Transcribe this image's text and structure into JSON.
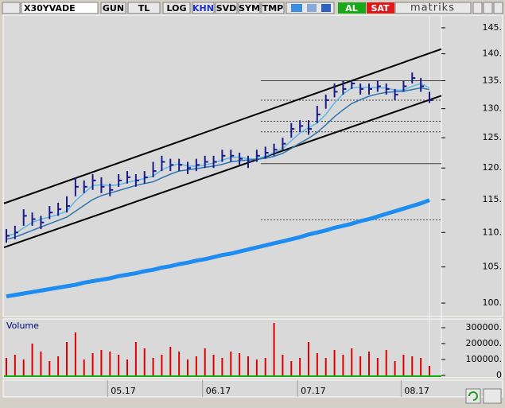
{
  "toolbar": {
    "symbol": "X30YVADE",
    "buttons": [
      "GUN",
      "TL",
      "LOG",
      "KHN",
      "SVD",
      "SYM",
      "TMP"
    ],
    "buy": "AL",
    "sell": "SAT",
    "brand": "matriks"
  },
  "chart_data": [
    {
      "type": "ohlc",
      "log": true,
      "color": "#1a1a8a",
      "ylim": [
        98.2,
        147.5
      ],
      "yticks": [
        {
          "value": 100,
          "label": "100."
        },
        {
          "value": 105,
          "label": "105."
        },
        {
          "value": 110,
          "label": "110."
        },
        {
          "value": 115,
          "label": "115."
        },
        {
          "value": 120,
          "label": "120."
        },
        {
          "value": 125,
          "label": "125."
        },
        {
          "value": 130,
          "label": "130."
        },
        {
          "value": 135,
          "label": "135."
        },
        {
          "value": 140,
          "label": "140."
        },
        {
          "value": 145,
          "label": "145."
        }
      ],
      "categories": [
        null,
        null,
        null,
        null,
        null,
        null,
        null,
        null,
        null,
        null,
        null,
        null,
        "05.17",
        null,
        null,
        null,
        null,
        null,
        null,
        null,
        null,
        null,
        null,
        "06.17",
        null,
        null,
        null,
        null,
        null,
        null,
        null,
        null,
        null,
        null,
        "07.17",
        null,
        null,
        null,
        null,
        null,
        null,
        null,
        null,
        null,
        null,
        null,
        "08.17",
        null,
        null,
        null
      ],
      "high": [
        110.5,
        111,
        113.5,
        113,
        112.5,
        114,
        114.5,
        115.5,
        118.5,
        118,
        119,
        118.5,
        117.5,
        119,
        119.5,
        119,
        119.5,
        121,
        122,
        121.5,
        121.5,
        121,
        121.5,
        122,
        122,
        123,
        123,
        122.5,
        122,
        123,
        123.5,
        124,
        125,
        127.5,
        128,
        128,
        130.5,
        132.5,
        134.5,
        135,
        135,
        134.5,
        134.5,
        135,
        134.5,
        133.5,
        135,
        136.5,
        135.5,
        133
      ],
      "low": [
        108.5,
        109,
        111,
        111,
        110.5,
        112,
        112.5,
        113,
        115.5,
        116,
        116.5,
        116,
        115.5,
        117,
        117.5,
        117,
        117.5,
        118.5,
        119.5,
        119.5,
        119.5,
        119,
        119.5,
        120,
        120,
        121,
        121,
        120.5,
        120,
        121,
        121.5,
        122,
        123,
        125,
        126,
        125.5,
        127.5,
        130,
        132,
        132.5,
        133.5,
        132.5,
        132.5,
        133,
        132.5,
        131.5,
        133,
        134.5,
        133,
        131
      ],
      "close": [
        109.5,
        110,
        112.5,
        112,
        111.5,
        113,
        113.5,
        114,
        117,
        117,
        118,
        117,
        116.5,
        118,
        118.5,
        118,
        118.5,
        119.5,
        121,
        120.5,
        120.5,
        120,
        120.5,
        121,
        121,
        122,
        122,
        121.5,
        121,
        122,
        122.5,
        123,
        124,
        126.5,
        127,
        126.5,
        129,
        131.5,
        133,
        133.5,
        134.5,
        133.5,
        133.5,
        134,
        133.5,
        132.5,
        134,
        135.5,
        134,
        131.5
      ],
      "series": [
        {
          "color": "#5ab8e8",
          "values": [
            109.5,
            109.8,
            110.7,
            111.5,
            112,
            112.3,
            112.7,
            113.2,
            114.8,
            116,
            117.2,
            117.3,
            117.2,
            117.3,
            117.7,
            118,
            118.3,
            118.7,
            119.7,
            120.3,
            120.7,
            120.3,
            120.3,
            120.5,
            120.8,
            121.3,
            121.7,
            121.8,
            121.5,
            121.5,
            121.9,
            122.5,
            123.2,
            124.5,
            125.8,
            126.7,
            127.5,
            129,
            131,
            132.6,
            133.7,
            133.8,
            133.8,
            133.7,
            133.7,
            133.3,
            133.3,
            134,
            134.5,
            133.7
          ]
        },
        {
          "color": "#2f74b0",
          "values": [
            109,
            109.3,
            109.8,
            110.3,
            110.8,
            111.3,
            111.8,
            112.3,
            113.2,
            114.1,
            115,
            115.6,
            116,
            116.4,
            116.8,
            117.2,
            117.5,
            117.8,
            118.4,
            119,
            119.5,
            119.7,
            119.9,
            120.1,
            120.3,
            120.6,
            121,
            121.2,
            121.3,
            121.4,
            121.6,
            121.9,
            122.4,
            123.2,
            124.1,
            124.9,
            125.9,
            127.2,
            128.6,
            129.8,
            130.9,
            131.6,
            132.2,
            132.6,
            132.9,
            133,
            133.1,
            133.4,
            133.7,
            133.4
          ]
        },
        {
          "color": "#1e8cf0",
          "values": [
            100.9,
            101.1,
            101.3,
            101.5,
            101.7,
            101.9,
            102.1,
            102.3,
            102.5,
            102.8,
            103,
            103.2,
            103.4,
            103.7,
            103.9,
            104.1,
            104.4,
            104.6,
            104.9,
            105.1,
            105.4,
            105.6,
            105.9,
            106.1,
            106.4,
            106.7,
            106.9,
            107.2,
            107.5,
            107.8,
            108.1,
            108.4,
            108.7,
            109,
            109.3,
            109.7,
            110,
            110.3,
            110.7,
            111,
            111.3,
            111.7,
            112,
            112.4,
            112.8,
            113.2,
            113.6,
            114,
            114.4,
            114.9
          ]
        }
      ],
      "trendlines": [
        {
          "color": "#000000",
          "values": [
            114.4,
            140.9
          ]
        },
        {
          "color": "#000000",
          "values": [
            107.8,
            132.3
          ]
        }
      ],
      "levels": [
        135,
        131.5,
        127.8,
        126.0,
        120.7,
        111.9
      ],
      "level_styles": [
        "solid",
        "dotted",
        "dotted",
        "dotted",
        "solid",
        "dotted"
      ]
    },
    {
      "type": "bar",
      "title": "Volume",
      "color": "#e00000",
      "ylim": [
        -10000,
        345000
      ],
      "yticks": [
        0,
        {
          "value": 100000,
          "label": "100000."
        },
        {
          "value": 200000,
          "label": "200000."
        },
        {
          "value": 300000,
          "label": "300000."
        }
      ],
      "values": [
        110000,
        130000,
        100000,
        200000,
        150000,
        90000,
        120000,
        210000,
        270000,
        100000,
        140000,
        160000,
        150000,
        130000,
        100000,
        210000,
        170000,
        110000,
        130000,
        180000,
        150000,
        100000,
        120000,
        170000,
        130000,
        110000,
        150000,
        140000,
        120000,
        100000,
        110000,
        330000,
        130000,
        90000,
        110000,
        210000,
        140000,
        110000,
        160000,
        130000,
        170000,
        120000,
        150000,
        110000,
        160000,
        90000,
        130000,
        120000,
        110000,
        60000
      ]
    }
  ]
}
